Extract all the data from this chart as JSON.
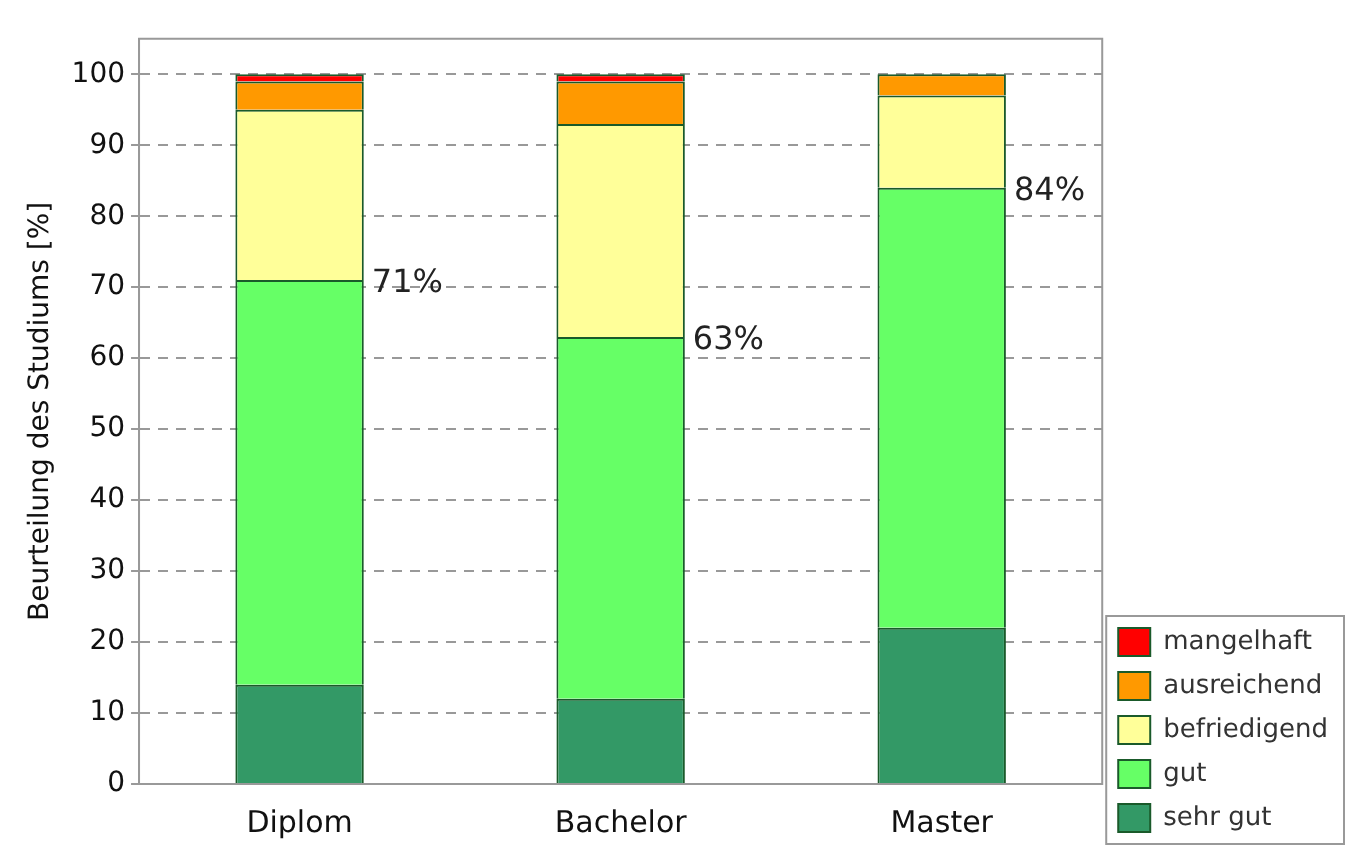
{
  "chart_data": {
    "type": "bar",
    "stacked": true,
    "ylabel": "Beurteilung des Studiums [%]",
    "categories": [
      "Diplom",
      "Bachelor",
      "Master"
    ],
    "series": [
      {
        "name": "sehr gut",
        "color": "#339966",
        "values": [
          14,
          12,
          22
        ]
      },
      {
        "name": "gut",
        "color": "#66ff66",
        "values": [
          57,
          51,
          62
        ]
      },
      {
        "name": "befriedigend",
        "color": "#ffff99",
        "values": [
          24,
          30,
          13
        ]
      },
      {
        "name": "ausreichend",
        "color": "#ff9900",
        "values": [
          4,
          6,
          3
        ]
      },
      {
        "name": "mangelhaft",
        "color": "#ff0000",
        "values": [
          1,
          1,
          0
        ]
      }
    ],
    "ylim": [
      0,
      105
    ],
    "yticks": [
      0,
      10,
      20,
      30,
      40,
      50,
      60,
      70,
      80,
      90,
      100
    ],
    "grid": "y",
    "line_style": "dashed",
    "legend": "bottom right",
    "annotations": [
      {
        "text": "71%",
        "x": "Diplom",
        "y": 71
      },
      {
        "text": "63%",
        "x": "Bachelor",
        "y": 63
      },
      {
        "text": "84%",
        "x": "Master",
        "y": 84
      }
    ]
  }
}
